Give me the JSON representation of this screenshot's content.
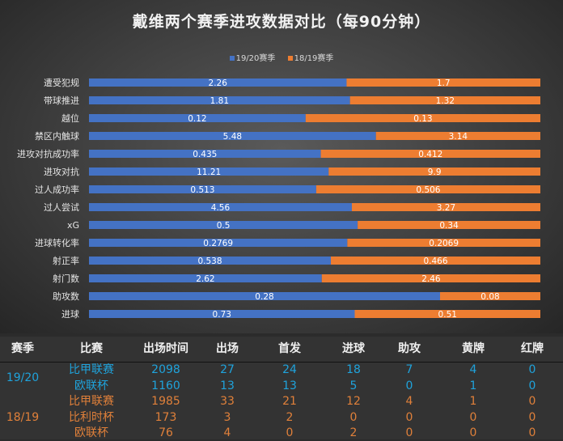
{
  "chart_data": {
    "type": "bar",
    "orientation": "horizontal",
    "stacking": "percent",
    "title": "戴维两个赛季进攻数据对比（每90分钟）",
    "legend_position": "top",
    "grid": false,
    "categories": [
      "遭受犯规",
      "带球推进",
      "越位",
      "禁区内触球",
      "进攻对抗成功率",
      "进攻对抗",
      "过人成功率",
      "过人尝试",
      "xG",
      "进球转化率",
      "射正率",
      "射门数",
      "助攻数",
      "进球"
    ],
    "series": [
      {
        "name": "19/20赛季",
        "color": "#4472c4",
        "values": [
          2.26,
          1.81,
          0.12,
          5.48,
          0.435,
          11.21,
          0.513,
          4.56,
          0.5,
          0.2769,
          0.538,
          2.62,
          0.28,
          0.73
        ]
      },
      {
        "name": "18/19赛季",
        "color": "#ed7d31",
        "values": [
          1.7,
          1.32,
          0.13,
          3.14,
          0.412,
          9.9,
          0.506,
          3.27,
          0.34,
          0.2069,
          0.466,
          2.46,
          0.08,
          0.51
        ]
      }
    ]
  },
  "table": {
    "headers": [
      "赛季",
      "比赛",
      "出场时间",
      "出场",
      "首发",
      "进球",
      "助攻",
      "黄牌",
      "红牌"
    ],
    "groups": [
      {
        "season": "19/20",
        "color": "#1fa3dc",
        "rows": [
          [
            "比甲联赛",
            "2098",
            "27",
            "24",
            "18",
            "7",
            "4",
            "0"
          ],
          [
            "欧联杯",
            "1160",
            "13",
            "13",
            "5",
            "0",
            "1",
            "0"
          ]
        ]
      },
      {
        "season": "18/19",
        "color": "#e0803a",
        "rows": [
          [
            "比甲联赛",
            "1985",
            "33",
            "21",
            "12",
            "4",
            "1",
            "0"
          ],
          [
            "比利时杯",
            "173",
            "3",
            "2",
            "0",
            "0",
            "0",
            "0"
          ],
          [
            "欧联杯",
            "76",
            "4",
            "0",
            "2",
            "0",
            "0",
            "0"
          ]
        ]
      }
    ]
  }
}
